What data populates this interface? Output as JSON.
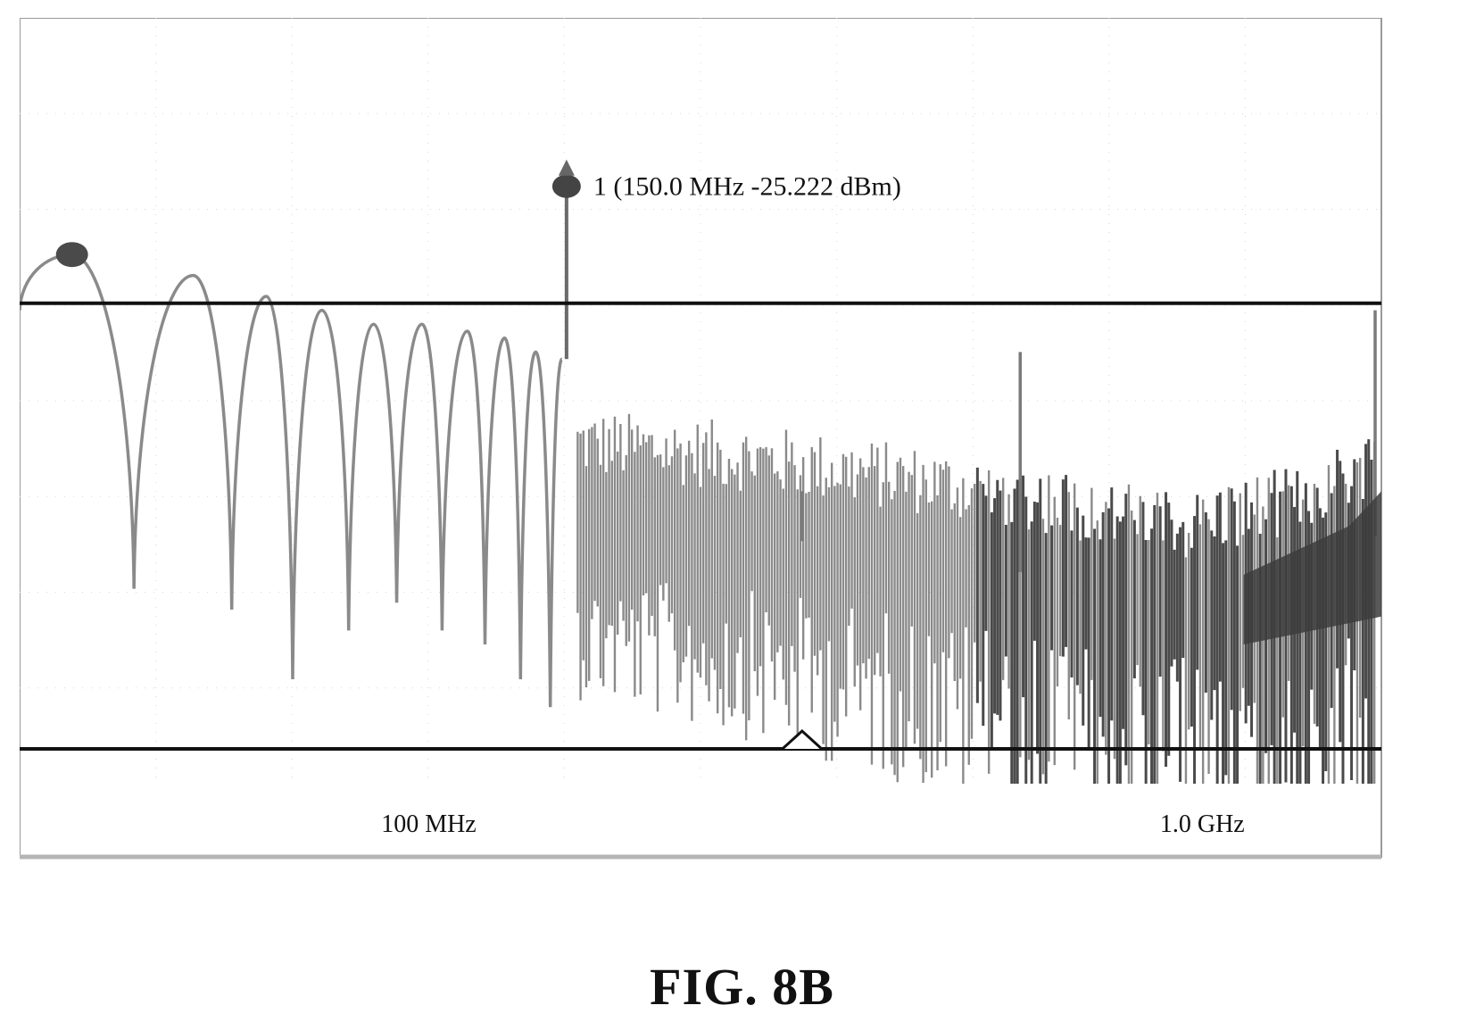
{
  "figure": {
    "caption": "FIG. 8B"
  },
  "chart_data": {
    "type": "line",
    "title": "",
    "xlabel": "",
    "ylabel": "",
    "x_scale": "log",
    "x_unit": "MHz",
    "xlim": [
      30,
      1650
    ],
    "x_tick_labels": [
      {
        "x": 100,
        "label": "100 MHz"
      },
      {
        "x": 1000,
        "label": "1.0 GHz"
      }
    ],
    "y_unit": "dBm",
    "ylim": [
      -110,
      0
    ],
    "grid": true,
    "reference_lines": [
      {
        "name": "upper-limit-line",
        "y": -41
      },
      {
        "name": "lower-limit-line",
        "y": -105
      }
    ],
    "marker": {
      "number": "1",
      "label": "1 (150.0 MHz -25.222 dBm)",
      "x": 150.0,
      "y": -25.222
    },
    "peak_dot": {
      "x": 35,
      "y": -34
    },
    "lobe_peaks": [
      {
        "x": 35,
        "y": -34
      },
      {
        "x": 50,
        "y": -37
      },
      {
        "x": 62,
        "y": -40
      },
      {
        "x": 73,
        "y": -42
      },
      {
        "x": 85,
        "y": -44
      },
      {
        "x": 98,
        "y": -44
      },
      {
        "x": 112,
        "y": -45
      },
      {
        "x": 125,
        "y": -46
      },
      {
        "x": 137,
        "y": -48
      },
      {
        "x": 148,
        "y": -49
      }
    ],
    "lobe_nulls": [
      {
        "x": 42,
        "y": -82
      },
      {
        "x": 56,
        "y": -85
      },
      {
        "x": 67,
        "y": -95
      },
      {
        "x": 79,
        "y": -88
      },
      {
        "x": 91,
        "y": -84
      },
      {
        "x": 104,
        "y": -88
      },
      {
        "x": 118,
        "y": -90
      },
      {
        "x": 131,
        "y": -95
      },
      {
        "x": 143,
        "y": -99
      }
    ],
    "noise_floor": [
      {
        "x": 155,
        "y": -72
      },
      {
        "x": 250,
        "y": -74
      },
      {
        "x": 400,
        "y": -77
      },
      {
        "x": 600,
        "y": -80
      },
      {
        "x": 900,
        "y": -84
      },
      {
        "x": 1300,
        "y": -80
      },
      {
        "x": 1650,
        "y": -74
      }
    ],
    "spurs": [
      {
        "x": 300,
        "y": -68
      },
      {
        "x": 570,
        "y": -48
      },
      {
        "x": 1620,
        "y": -42
      }
    ],
    "colors": {
      "trace": "#8a8a8a",
      "dense_trace": "#4a4a4a",
      "limit_line": "#111111",
      "frame": "#9a9a9a"
    }
  }
}
